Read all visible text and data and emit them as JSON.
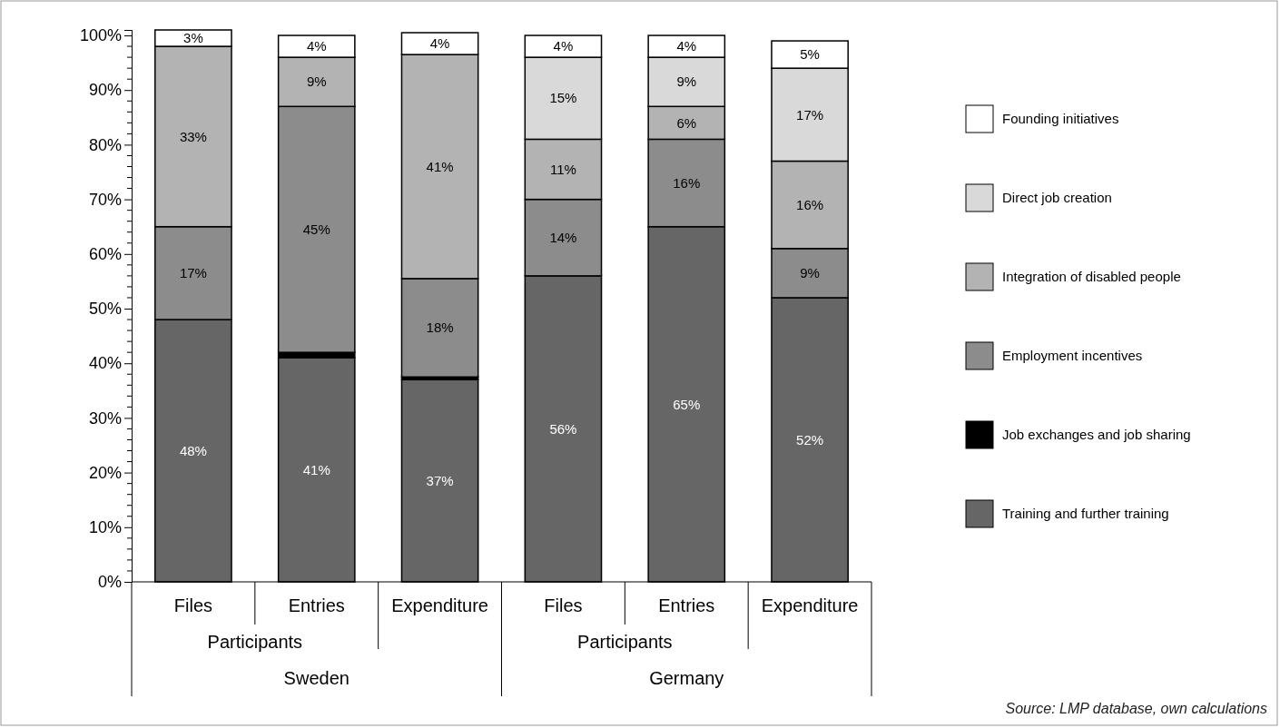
{
  "chart_data": {
    "type": "bar",
    "stacked": true,
    "legend": "right",
    "categories": [
      "Files",
      "Entries",
      "Expenditure",
      "Files",
      "Entries",
      "Expenditure"
    ],
    "series": [
      {
        "name": "Training and further training",
        "color": "#666666",
        "values": [
          48,
          41,
          37,
          56,
          65,
          52
        ],
        "value_labels": [
          "48%",
          "41%",
          "37%",
          "56%",
          "65%",
          "52%"
        ]
      },
      {
        "name": "Job exchanges and job sharing",
        "color": "#000000",
        "values": [
          null,
          1,
          0.5,
          null,
          null,
          null
        ],
        "value_labels": [
          null,
          null,
          null,
          null,
          null,
          null
        ]
      },
      {
        "name": "Employment incentives",
        "color": "#8c8c8c",
        "values": [
          17,
          45,
          18,
          14,
          16,
          9
        ],
        "value_labels": [
          "17%",
          "45%",
          "18%",
          "14%",
          "16%",
          "9%"
        ]
      },
      {
        "name": "Integration of disabled people",
        "color": "#b3b3b3",
        "values": [
          33,
          9,
          41,
          11,
          6,
          16
        ],
        "value_labels": [
          "33%",
          "9%",
          "41%",
          "11%",
          "6%",
          "16%"
        ]
      },
      {
        "name": "Direct job creation",
        "color": "#d9d9d9",
        "values": [
          null,
          null,
          null,
          15,
          9,
          17
        ],
        "value_labels": [
          null,
          null,
          null,
          "15%",
          "9%",
          "17%"
        ]
      },
      {
        "name": "Founding initiatives",
        "color": "#ffffff",
        "values": [
          3,
          4,
          4,
          4,
          4,
          5
        ],
        "value_labels": [
          "3%",
          "4%",
          "4%",
          "4%",
          "4%",
          "5%"
        ]
      }
    ],
    "ylim": [
      0,
      101
    ],
    "yticks": [
      {
        "value": 0,
        "label": "0%"
      },
      {
        "value": 10,
        "label": "10%"
      },
      {
        "value": 20,
        "label": "20%"
      },
      {
        "value": 30,
        "label": "30%"
      },
      {
        "value": 40,
        "label": "40%"
      },
      {
        "value": 50,
        "label": "50%"
      },
      {
        "value": 60,
        "label": "60%"
      },
      {
        "value": 70,
        "label": "70%"
      },
      {
        "value": 80,
        "label": "80%"
      },
      {
        "value": 90,
        "label": "90%"
      },
      {
        "value": 100,
        "label": "100%"
      }
    ],
    "annotations": [
      "Participants",
      "Participants",
      "Sweden",
      "Germany",
      "Source: LMP database, own calculations"
    ]
  }
}
